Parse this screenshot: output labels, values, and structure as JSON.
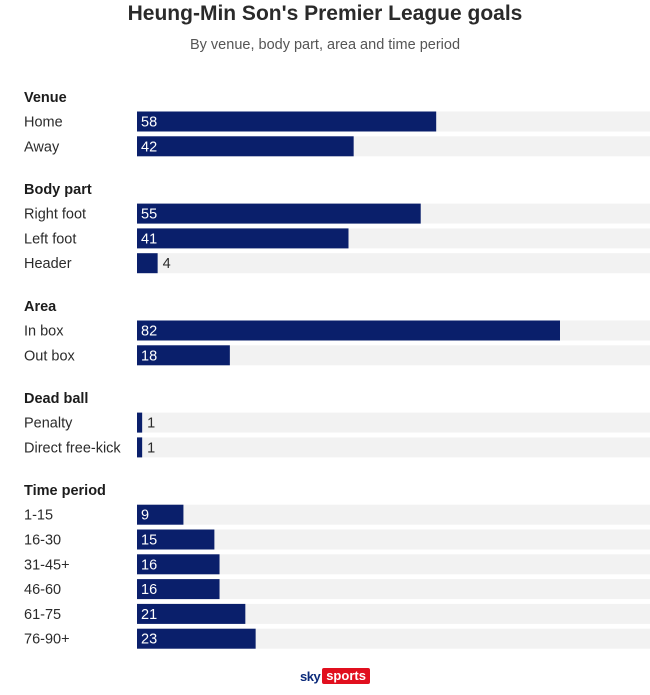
{
  "title": "Heung-Min Son's Premier League goals",
  "subtitle": "By venue, body part, area and time period",
  "logo": {
    "sky": "sky",
    "sports": "sports"
  },
  "colors": {
    "bar": "#0a1f6b",
    "track": "#f2f2f2"
  },
  "chart_data": {
    "type": "bar",
    "orientation": "horizontal",
    "xlim": [
      0,
      100
    ],
    "groups": [
      {
        "name": "Venue",
        "categories": [
          "Home",
          "Away"
        ],
        "values": [
          58,
          42
        ]
      },
      {
        "name": "Body part",
        "categories": [
          "Right foot",
          "Left foot",
          "Header"
        ],
        "values": [
          55,
          41,
          4
        ]
      },
      {
        "name": "Area",
        "categories": [
          "In box",
          "Out box"
        ],
        "values": [
          82,
          18
        ]
      },
      {
        "name": "Dead ball",
        "categories": [
          "Penalty",
          "Direct free-kick"
        ],
        "values": [
          1,
          1
        ]
      },
      {
        "name": "Time period",
        "categories": [
          "1-15",
          "16-30",
          "31-45+",
          "46-60",
          "61-75",
          "76-90+"
        ],
        "values": [
          9,
          15,
          16,
          16,
          21,
          23
        ]
      }
    ]
  }
}
